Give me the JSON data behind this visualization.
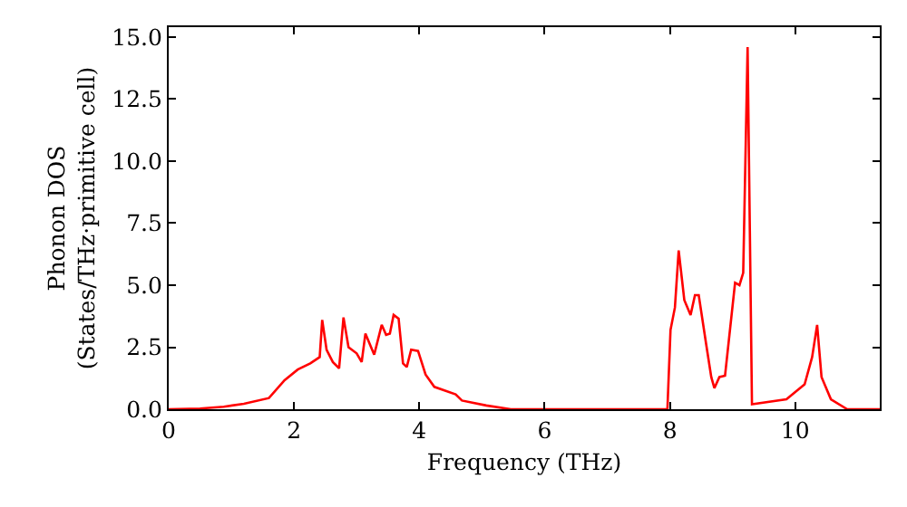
{
  "chart_data": {
    "type": "line",
    "xlabel": "Frequency (THz)",
    "ylabel": "Phonon DOS\n(States/THz·primitive cell)",
    "xlim": [
      0,
      11.35
    ],
    "xticks": [
      0,
      2,
      4,
      6,
      8,
      10
    ],
    "ylim": [
      0,
      15.4
    ],
    "yticks": [
      {
        "value": 0,
        "label": "0.0"
      },
      {
        "value": 2.5,
        "label": "2.5"
      },
      {
        "value": 5,
        "label": "5.0"
      },
      {
        "value": 7.5,
        "label": "7.5"
      },
      {
        "value": 10,
        "label": "10.0"
      },
      {
        "value": 12.5,
        "label": "12.5"
      },
      {
        "value": 15,
        "label": "15.0"
      }
    ],
    "grid": false,
    "marker": "none",
    "line_style": "solid",
    "series": [
      {
        "color": "#ff0000",
        "x": [
          0,
          0.5,
          0.88,
          1.2,
          1.6,
          1.85,
          2.06,
          2.26,
          2.41,
          2.45,
          2.52,
          2.62,
          2.72,
          2.79,
          2.87,
          3.0,
          3.08,
          3.14,
          3.28,
          3.4,
          3.47,
          3.53,
          3.59,
          3.67,
          3.74,
          3.8,
          3.87,
          3.98,
          4.1,
          4.24,
          4.58,
          4.68,
          5.07,
          5.46,
          7.96,
          8.01,
          8.08,
          8.14,
          8.23,
          8.33,
          8.4,
          8.46,
          8.58,
          8.66,
          8.71,
          8.79,
          8.88,
          9.04,
          9.11,
          9.17,
          9.24,
          9.31,
          9.86,
          10.15,
          10.27,
          10.35,
          10.42,
          10.57,
          10.83,
          11.35
        ],
        "values": [
          0,
          0.03,
          0.1,
          0.22,
          0.45,
          1.17,
          1.6,
          1.85,
          2.1,
          3.6,
          2.4,
          1.9,
          1.65,
          3.7,
          2.5,
          2.25,
          1.9,
          3.05,
          2.2,
          3.4,
          3.0,
          3.05,
          3.8,
          3.65,
          1.85,
          1.7,
          2.4,
          2.35,
          1.4,
          0.9,
          0.6,
          0.35,
          0.15,
          0,
          0,
          3.2,
          4.1,
          6.4,
          4.4,
          3.8,
          4.6,
          4.6,
          2.6,
          1.3,
          0.85,
          1.3,
          1.35,
          5.1,
          5.0,
          5.5,
          14.6,
          0.2,
          0.4,
          1.0,
          2.1,
          3.4,
          1.3,
          0.4,
          0,
          0
        ]
      }
    ]
  }
}
